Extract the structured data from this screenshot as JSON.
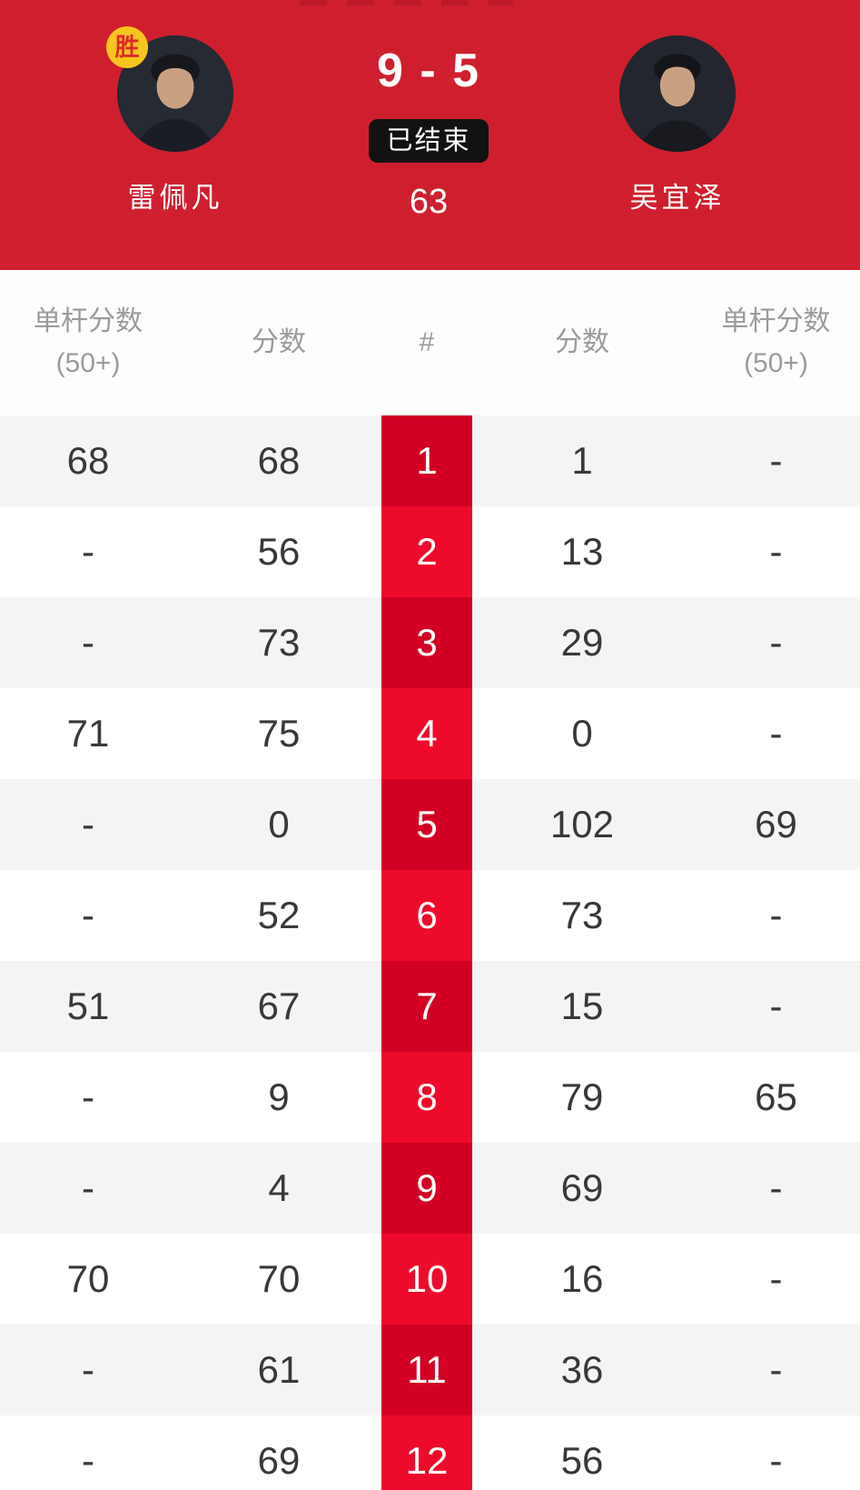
{
  "colors": {
    "header_bg": "#cf1f2e",
    "frame_col_bright": "#ee0a2b",
    "frame_col_dark": "#d20124",
    "row_alt_bg": "#f4f4f6",
    "row_bg": "#ffffff",
    "winner_badge_bg": "#f6c51f",
    "winner_badge_text": "#e02a2a",
    "status_badge_bg": "#121212",
    "header_text": "#ffffff",
    "table_header_text": "#9b9b9b",
    "cell_text": "#38383a"
  },
  "header": {
    "score": "9 - 5",
    "status": "已结束",
    "sub_score": "63",
    "left_player": {
      "name": "雷佩凡",
      "winner_badge": "胜"
    },
    "right_player": {
      "name": "吴宜泽"
    }
  },
  "table": {
    "header": {
      "left_break_line1": "单杆分数",
      "left_break_line2": "(50+)",
      "left_score": "分数",
      "frame": "#",
      "right_score": "分数",
      "right_break_line1": "单杆分数",
      "right_break_line2": "(50+)"
    },
    "rows": [
      {
        "frame": "1",
        "left_break": "68",
        "left_score": "68",
        "right_score": "1",
        "right_break": "-"
      },
      {
        "frame": "2",
        "left_break": "-",
        "left_score": "56",
        "right_score": "13",
        "right_break": "-"
      },
      {
        "frame": "3",
        "left_break": "-",
        "left_score": "73",
        "right_score": "29",
        "right_break": "-"
      },
      {
        "frame": "4",
        "left_break": "71",
        "left_score": "75",
        "right_score": "0",
        "right_break": "-"
      },
      {
        "frame": "5",
        "left_break": "-",
        "left_score": "0",
        "right_score": "102",
        "right_break": "69"
      },
      {
        "frame": "6",
        "left_break": "-",
        "left_score": "52",
        "right_score": "73",
        "right_break": "-"
      },
      {
        "frame": "7",
        "left_break": "51",
        "left_score": "67",
        "right_score": "15",
        "right_break": "-"
      },
      {
        "frame": "8",
        "left_break": "-",
        "left_score": "9",
        "right_score": "79",
        "right_break": "65"
      },
      {
        "frame": "9",
        "left_break": "-",
        "left_score": "4",
        "right_score": "69",
        "right_break": "-"
      },
      {
        "frame": "10",
        "left_break": "70",
        "left_score": "70",
        "right_score": "16",
        "right_break": "-"
      },
      {
        "frame": "11",
        "left_break": "-",
        "left_score": "61",
        "right_score": "36",
        "right_break": "-"
      },
      {
        "frame": "12",
        "left_break": "-",
        "left_score": "69",
        "right_score": "56",
        "right_break": "-"
      }
    ]
  }
}
